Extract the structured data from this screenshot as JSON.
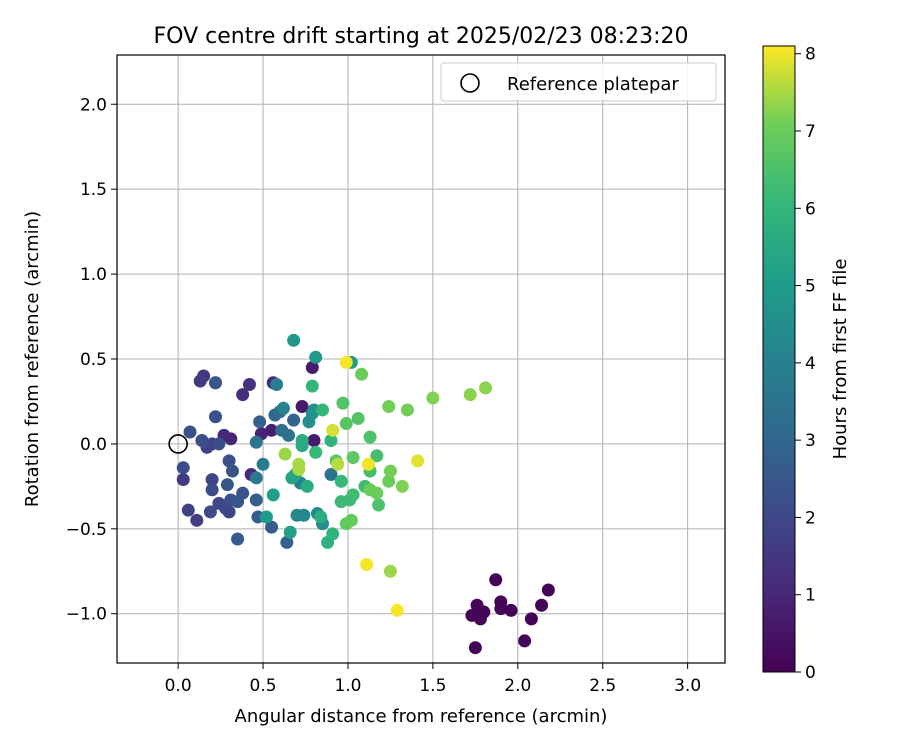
{
  "chart_data": {
    "type": "scatter",
    "title": "FOV centre drift starting at 2025/02/23 08:23:20",
    "xlabel": "Angular distance from reference (arcmin)",
    "ylabel": "Rotation from reference (arcmin)",
    "xlim": [
      -0.36,
      3.22
    ],
    "ylim": [
      -1.29,
      2.29
    ],
    "xticks": [
      0.0,
      0.5,
      1.0,
      1.5,
      2.0,
      2.5,
      3.0
    ],
    "yticks": [
      -1.0,
      -0.5,
      0.0,
      0.5,
      1.0,
      1.5,
      2.0
    ],
    "xtick_labels": [
      "0.0",
      "0.5",
      "1.0",
      "1.5",
      "2.0",
      "2.5",
      "3.0"
    ],
    "ytick_labels": [
      "−1.0",
      "−0.5",
      "0.0",
      "0.5",
      "1.0",
      "1.5",
      "2.0"
    ],
    "grid": true,
    "legend_position": "top-right",
    "reference": {
      "name": "Reference platepar",
      "x": 0.0,
      "y": 0.0
    },
    "colorbar": {
      "label": "Hours from first FF file",
      "min": 0,
      "max": 8.1,
      "ticks": [
        0,
        1,
        2,
        3,
        4,
        5,
        6,
        7,
        8
      ],
      "tick_labels": [
        "0",
        "1",
        "2",
        "3",
        "4",
        "5",
        "6",
        "7",
        "8"
      ],
      "colormap": "viridis"
    },
    "points": [
      {
        "x": 1.73,
        "y": -1.01,
        "h": 0.1
      },
      {
        "x": 1.75,
        "y": -1.2,
        "h": 0.1
      },
      {
        "x": 1.76,
        "y": -0.95,
        "h": 0.1
      },
      {
        "x": 1.78,
        "y": -1.03,
        "h": 0.1
      },
      {
        "x": 1.8,
        "y": -0.99,
        "h": 0.1
      },
      {
        "x": 1.87,
        "y": -0.8,
        "h": 0.1
      },
      {
        "x": 1.9,
        "y": -0.93,
        "h": 0.1
      },
      {
        "x": 1.9,
        "y": -0.97,
        "h": 0.1
      },
      {
        "x": 1.96,
        "y": -0.98,
        "h": 0.1
      },
      {
        "x": 2.04,
        "y": -1.16,
        "h": 0.1
      },
      {
        "x": 2.08,
        "y": -1.03,
        "h": 0.1
      },
      {
        "x": 2.14,
        "y": -0.95,
        "h": 0.1
      },
      {
        "x": 2.18,
        "y": -0.86,
        "h": 0.1
      },
      {
        "x": 0.79,
        "y": 0.45,
        "h": 0.7
      },
      {
        "x": 0.73,
        "y": 0.22,
        "h": 0.7
      },
      {
        "x": 0.8,
        "y": 0.02,
        "h": 0.7
      },
      {
        "x": 0.55,
        "y": 0.08,
        "h": 0.8
      },
      {
        "x": 0.49,
        "y": 0.06,
        "h": 0.9
      },
      {
        "x": 0.31,
        "y": 0.03,
        "h": 0.9
      },
      {
        "x": 0.27,
        "y": 0.05,
        "h": 1.0
      },
      {
        "x": 0.43,
        "y": -0.18,
        "h": 1.0
      },
      {
        "x": 0.56,
        "y": 0.36,
        "h": 1.0
      },
      {
        "x": 0.38,
        "y": 0.29,
        "h": 1.2
      },
      {
        "x": 0.42,
        "y": 0.35,
        "h": 1.3
      },
      {
        "x": 0.22,
        "y": 0.36,
        "h": 1.4
      },
      {
        "x": 0.15,
        "y": 0.4,
        "h": 1.5
      },
      {
        "x": 0.13,
        "y": 0.37,
        "h": 1.6
      },
      {
        "x": 0.03,
        "y": -0.21,
        "h": 1.6
      },
      {
        "x": 0.11,
        "y": -0.45,
        "h": 1.7
      },
      {
        "x": 0.06,
        "y": -0.39,
        "h": 1.8
      },
      {
        "x": 0.17,
        "y": -0.02,
        "h": 1.8
      },
      {
        "x": 0.2,
        "y": 0.0,
        "h": 1.8
      },
      {
        "x": 0.2,
        "y": -0.21,
        "h": 1.9
      },
      {
        "x": 0.3,
        "y": -0.4,
        "h": 1.9
      },
      {
        "x": 0.28,
        "y": -0.38,
        "h": 2.0
      },
      {
        "x": 0.24,
        "y": -0.35,
        "h": 2.0
      },
      {
        "x": 0.19,
        "y": -0.4,
        "h": 2.1
      },
      {
        "x": 0.2,
        "y": -0.27,
        "h": 2.1
      },
      {
        "x": 0.24,
        "y": 0.0,
        "h": 2.2
      },
      {
        "x": 0.14,
        "y": 0.02,
        "h": 2.2
      },
      {
        "x": 0.03,
        "y": -0.14,
        "h": 2.2
      },
      {
        "x": 0.07,
        "y": 0.07,
        "h": 2.3
      },
      {
        "x": 0.22,
        "y": 0.16,
        "h": 2.3
      },
      {
        "x": 0.31,
        "y": -0.33,
        "h": 2.3
      },
      {
        "x": 0.3,
        "y": -0.1,
        "h": 2.3
      },
      {
        "x": 0.32,
        "y": -0.16,
        "h": 2.4
      },
      {
        "x": 0.35,
        "y": -0.34,
        "h": 2.4
      },
      {
        "x": 0.38,
        "y": -0.29,
        "h": 2.4
      },
      {
        "x": 0.29,
        "y": -0.24,
        "h": 2.5
      },
      {
        "x": 0.22,
        "y": 0.36,
        "h": 2.5
      },
      {
        "x": 0.35,
        "y": -0.56,
        "h": 2.6
      },
      {
        "x": 0.55,
        "y": -0.49,
        "h": 2.6
      },
      {
        "x": 0.47,
        "y": -0.43,
        "h": 2.7
      },
      {
        "x": 0.46,
        "y": -0.33,
        "h": 2.7
      },
      {
        "x": 0.64,
        "y": -0.58,
        "h": 2.8
      },
      {
        "x": 0.48,
        "y": 0.13,
        "h": 2.8
      },
      {
        "x": 0.68,
        "y": 0.14,
        "h": 2.9
      },
      {
        "x": 0.57,
        "y": 0.17,
        "h": 3.0
      },
      {
        "x": 0.6,
        "y": 0.19,
        "h": 3.2
      },
      {
        "x": 0.61,
        "y": 0.08,
        "h": 3.3
      },
      {
        "x": 0.65,
        "y": 0.05,
        "h": 3.4
      },
      {
        "x": 0.9,
        "y": -0.18,
        "h": 3.5
      },
      {
        "x": 0.46,
        "y": 0.01,
        "h": 3.6
      },
      {
        "x": 0.46,
        "y": -0.2,
        "h": 3.7
      },
      {
        "x": 0.5,
        "y": -0.12,
        "h": 3.8
      },
      {
        "x": 0.58,
        "y": 0.35,
        "h": 3.9
      },
      {
        "x": 0.62,
        "y": 0.21,
        "h": 4.0
      },
      {
        "x": 0.72,
        "y": -0.23,
        "h": 4.1
      },
      {
        "x": 0.74,
        "y": -0.42,
        "h": 4.2
      },
      {
        "x": 0.7,
        "y": -0.42,
        "h": 4.3
      },
      {
        "x": 0.82,
        "y": -0.41,
        "h": 4.4
      },
      {
        "x": 0.85,
        "y": -0.47,
        "h": 4.5
      },
      {
        "x": 0.77,
        "y": 0.13,
        "h": 4.6
      },
      {
        "x": 0.79,
        "y": 0.18,
        "h": 4.7
      },
      {
        "x": 0.8,
        "y": 0.2,
        "h": 4.7
      },
      {
        "x": 0.68,
        "y": 0.61,
        "h": 4.8
      },
      {
        "x": 0.81,
        "y": 0.51,
        "h": 4.9
      },
      {
        "x": 1.02,
        "y": 0.48,
        "h": 5.0
      },
      {
        "x": 0.52,
        "y": -0.43,
        "h": 5.0
      },
      {
        "x": 0.56,
        "y": -0.3,
        "h": 5.1
      },
      {
        "x": 0.66,
        "y": -0.52,
        "h": 5.2
      },
      {
        "x": 0.67,
        "y": -0.2,
        "h": 5.3
      },
      {
        "x": 0.69,
        "y": -0.18,
        "h": 5.4
      },
      {
        "x": 0.73,
        "y": -0.01,
        "h": 5.5
      },
      {
        "x": 0.73,
        "y": 0.02,
        "h": 5.6
      },
      {
        "x": 0.76,
        "y": -0.25,
        "h": 5.6
      },
      {
        "x": 0.84,
        "y": -0.43,
        "h": 5.7
      },
      {
        "x": 0.88,
        "y": -0.58,
        "h": 5.8
      },
      {
        "x": 0.91,
        "y": -0.53,
        "h": 5.9
      },
      {
        "x": 0.9,
        "y": 0.02,
        "h": 5.9
      },
      {
        "x": 0.85,
        "y": 0.2,
        "h": 6.0
      },
      {
        "x": 0.79,
        "y": 0.34,
        "h": 6.0
      },
      {
        "x": 0.81,
        "y": -0.05,
        "h": 6.1
      },
      {
        "x": 0.96,
        "y": -0.22,
        "h": 6.1
      },
      {
        "x": 0.96,
        "y": -0.34,
        "h": 6.2
      },
      {
        "x": 1.01,
        "y": -0.33,
        "h": 6.2
      },
      {
        "x": 1.03,
        "y": -0.3,
        "h": 6.3
      },
      {
        "x": 1.1,
        "y": -0.25,
        "h": 6.3
      },
      {
        "x": 1.13,
        "y": -0.16,
        "h": 6.4
      },
      {
        "x": 1.17,
        "y": -0.07,
        "h": 6.4
      },
      {
        "x": 1.18,
        "y": -0.36,
        "h": 6.5
      },
      {
        "x": 1.13,
        "y": 0.04,
        "h": 6.5
      },
      {
        "x": 0.97,
        "y": 0.24,
        "h": 6.6
      },
      {
        "x": 1.06,
        "y": 0.15,
        "h": 6.6
      },
      {
        "x": 0.99,
        "y": 0.12,
        "h": 6.7
      },
      {
        "x": 1.03,
        "y": -0.08,
        "h": 6.8
      },
      {
        "x": 0.93,
        "y": -0.1,
        "h": 6.8
      },
      {
        "x": 0.99,
        "y": -0.47,
        "h": 6.9
      },
      {
        "x": 1.02,
        "y": -0.45,
        "h": 6.9
      },
      {
        "x": 1.08,
        "y": 0.41,
        "h": 7.0
      },
      {
        "x": 1.17,
        "y": -0.29,
        "h": 7.0
      },
      {
        "x": 1.13,
        "y": -0.27,
        "h": 7.0
      },
      {
        "x": 1.24,
        "y": -0.22,
        "h": 7.0
      },
      {
        "x": 1.25,
        "y": -0.16,
        "h": 7.1
      },
      {
        "x": 1.24,
        "y": 0.22,
        "h": 7.1
      },
      {
        "x": 1.35,
        "y": 0.2,
        "h": 7.1
      },
      {
        "x": 1.32,
        "y": -0.25,
        "h": 7.2
      },
      {
        "x": 1.5,
        "y": 0.27,
        "h": 7.2
      },
      {
        "x": 1.72,
        "y": 0.29,
        "h": 7.3
      },
      {
        "x": 1.81,
        "y": 0.33,
        "h": 7.3
      },
      {
        "x": 1.25,
        "y": -0.75,
        "h": 7.4
      },
      {
        "x": 0.63,
        "y": -0.06,
        "h": 7.4
      },
      {
        "x": 0.71,
        "y": -0.15,
        "h": 7.5
      },
      {
        "x": 0.71,
        "y": -0.12,
        "h": 7.5
      },
      {
        "x": 0.94,
        "y": -0.12,
        "h": 7.6
      },
      {
        "x": 0.91,
        "y": 0.08,
        "h": 7.8
      },
      {
        "x": 1.41,
        "y": -0.1,
        "h": 7.9
      },
      {
        "x": 1.12,
        "y": -0.12,
        "h": 8.0
      },
      {
        "x": 0.99,
        "y": 0.48,
        "h": 8.05
      },
      {
        "x": 1.11,
        "y": -0.71,
        "h": 8.05
      },
      {
        "x": 1.29,
        "y": -0.98,
        "h": 8.05
      }
    ]
  }
}
